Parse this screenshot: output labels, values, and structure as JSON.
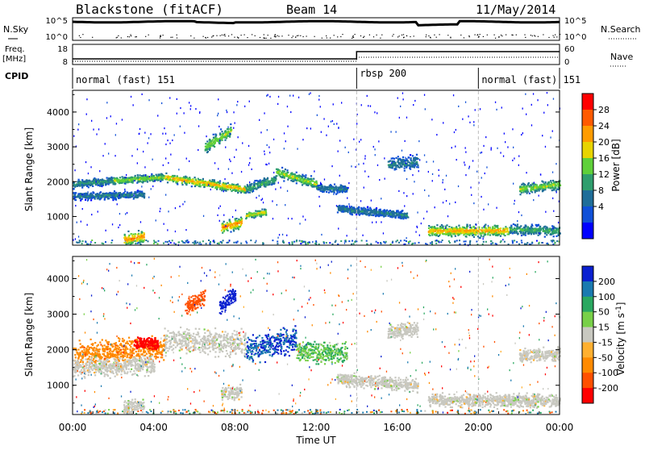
{
  "header": {
    "station": "Blackstone (fitACF)",
    "beam": "Beam 14",
    "date": "11/May/2014"
  },
  "nsky_panel": {
    "left_label": "N.Sky",
    "left_ticks": [
      "10^5",
      "10^0"
    ],
    "right_ticks": [
      "10^5",
      "10^0"
    ],
    "right_label": "N.Search"
  },
  "freq_panel": {
    "left_label_line1": "Freq.",
    "left_label_line2": "[MHz]",
    "left_ticks": [
      "18",
      "8"
    ],
    "right_ticks": [
      "60",
      "0"
    ],
    "right_label": "Nave"
  },
  "cpid_panel": {
    "label": "CPID",
    "segments": [
      {
        "name": "normal (fast) 151",
        "start_hour": 0,
        "end_hour": 14
      },
      {
        "name": "rbsp 200",
        "start_hour": 14,
        "end_hour": 20
      },
      {
        "name": "normal (fast) 151",
        "start_hour": 20,
        "end_hour": 24
      }
    ]
  },
  "chart_data": [
    {
      "type": "heatmap",
      "quantity": "power",
      "ylabel": "Slant Range [km]",
      "xlim": [
        0,
        24
      ],
      "ylim": [
        200,
        4600
      ],
      "yticks": [
        "1000",
        "2000",
        "3000",
        "4000"
      ],
      "colorbar": {
        "label": "Power [dB]",
        "ticks": [
          "28",
          "24",
          "20",
          "16",
          "12",
          "8",
          "4"
        ],
        "colors": [
          "#ff0000",
          "#ff5a00",
          "#ff9c00",
          "#e8d400",
          "#5fd03a",
          "#2f9e6e",
          "#1f6e99",
          "#1050d8",
          "#0000ff"
        ]
      },
      "scatter_bands": [
        {
          "start": 0.0,
          "end": 2.0,
          "r0": 1950,
          "r1": 2050,
          "width": 160,
          "intensity": 12
        },
        {
          "start": 2.0,
          "end": 4.5,
          "r0": 2050,
          "r1": 2150,
          "width": 150,
          "intensity": 18
        },
        {
          "start": 4.5,
          "end": 8.5,
          "r0": 2150,
          "r1": 1800,
          "width": 160,
          "intensity": 24
        },
        {
          "start": 8.5,
          "end": 10.0,
          "r0": 1800,
          "r1": 2100,
          "width": 180,
          "intensity": 14
        },
        {
          "start": 10.0,
          "end": 12.0,
          "r0": 2300,
          "r1": 1950,
          "width": 200,
          "intensity": 18
        },
        {
          "start": 12.0,
          "end": 13.5,
          "r0": 1850,
          "r1": 1800,
          "width": 160,
          "intensity": 10
        },
        {
          "start": 0.0,
          "end": 3.5,
          "r0": 1600,
          "r1": 1650,
          "width": 140,
          "intensity": 10
        },
        {
          "start": 13.0,
          "end": 16.5,
          "r0": 1250,
          "r1": 1050,
          "width": 150,
          "intensity": 10
        },
        {
          "start": 17.5,
          "end": 21.5,
          "r0": 600,
          "r1": 620,
          "width": 220,
          "intensity": 24
        },
        {
          "start": 21.5,
          "end": 24.0,
          "r0": 650,
          "r1": 600,
          "width": 200,
          "intensity": 14
        },
        {
          "start": 2.5,
          "end": 3.5,
          "r0": 350,
          "r1": 450,
          "width": 250,
          "intensity": 26
        },
        {
          "start": 7.3,
          "end": 8.3,
          "r0": 700,
          "r1": 850,
          "width": 220,
          "intensity": 26
        },
        {
          "start": 8.5,
          "end": 9.5,
          "r0": 1050,
          "r1": 1150,
          "width": 120,
          "intensity": 22
        },
        {
          "start": 15.5,
          "end": 17.0,
          "r0": 2500,
          "r1": 2600,
          "width": 250,
          "intensity": 10
        },
        {
          "start": 22.0,
          "end": 24.0,
          "r0": 1800,
          "r1": 1950,
          "width": 200,
          "intensity": 18
        },
        {
          "start": 6.5,
          "end": 7.8,
          "r0": 3000,
          "r1": 3500,
          "width": 250,
          "intensity": 18
        }
      ]
    },
    {
      "type": "heatmap",
      "quantity": "velocity",
      "ylabel": "Slant Range [km]",
      "xlabel": "Time UT",
      "xlim": [
        0,
        24
      ],
      "ylim": [
        200,
        4600
      ],
      "yticks": [
        "1000",
        "2000",
        "3000",
        "4000"
      ],
      "xticks": [
        "00:00",
        "04:00",
        "08:00",
        "12:00",
        "16:00",
        "20:00",
        "00:00"
      ],
      "colorbar": {
        "label": "Velocity [m s^-1]",
        "ticks": [
          "200",
          "100",
          "50",
          "15",
          "-15",
          "-50",
          "-100",
          "-200"
        ],
        "colors": [
          "#0a20d0",
          "#1a7ab0",
          "#2aa860",
          "#78d048",
          "#c8c8c0",
          "#ffb030",
          "#ff8a00",
          "#ff5000",
          "#ff0000"
        ]
      },
      "scatter_bands": [
        {
          "start": 0.0,
          "end": 4.5,
          "r0": 1900,
          "r1": 2050,
          "width": 450,
          "vel": -60
        },
        {
          "start": 4.5,
          "end": 8.5,
          "r0": 2300,
          "r1": 2200,
          "width": 500,
          "vel": 0
        },
        {
          "start": 8.5,
          "end": 11.0,
          "r0": 2000,
          "r1": 2300,
          "width": 500,
          "vel": 150
        },
        {
          "start": 11.0,
          "end": 13.5,
          "r0": 2000,
          "r1": 1900,
          "width": 400,
          "vel": 30
        },
        {
          "start": 0.0,
          "end": 4.0,
          "r0": 1500,
          "r1": 1600,
          "width": 350,
          "vel": 0
        },
        {
          "start": 13.0,
          "end": 17.0,
          "r0": 1200,
          "r1": 1000,
          "width": 250,
          "vel": 0
        },
        {
          "start": 17.5,
          "end": 24.0,
          "r0": 600,
          "r1": 580,
          "width": 250,
          "vel": 0
        },
        {
          "start": 2.5,
          "end": 3.5,
          "r0": 400,
          "r1": 450,
          "width": 250,
          "vel": 0
        },
        {
          "start": 3.0,
          "end": 4.2,
          "r0": 2200,
          "r1": 2200,
          "width": 250,
          "vel": -200
        },
        {
          "start": 5.5,
          "end": 6.5,
          "r0": 3200,
          "r1": 3500,
          "width": 300,
          "vel": -120
        },
        {
          "start": 7.2,
          "end": 8.0,
          "r0": 3200,
          "r1": 3600,
          "width": 300,
          "vel": 200
        },
        {
          "start": 15.5,
          "end": 17.0,
          "r0": 2500,
          "r1": 2600,
          "width": 300,
          "vel": 0
        },
        {
          "start": 22.0,
          "end": 24.0,
          "r0": 1850,
          "r1": 1900,
          "width": 250,
          "vel": 0
        },
        {
          "start": 7.3,
          "end": 8.3,
          "r0": 800,
          "r1": 850,
          "width": 250,
          "vel": 0
        }
      ]
    }
  ]
}
